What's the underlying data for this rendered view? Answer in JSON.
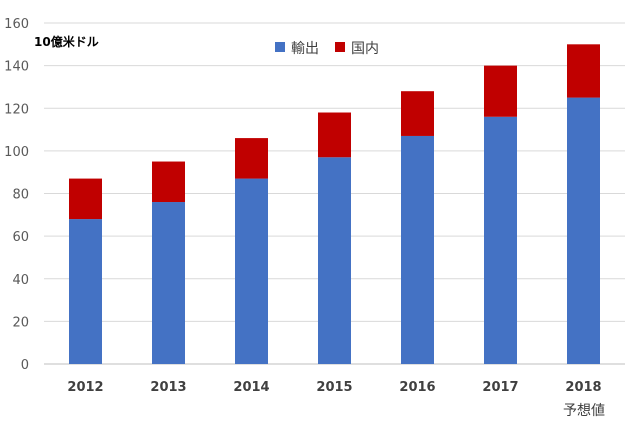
{
  "chart_data": {
    "type": "bar",
    "stacked": true,
    "categories": [
      "2012",
      "2013",
      "2014",
      "2015",
      "2016",
      "2017",
      "2018"
    ],
    "series": [
      {
        "name": "輸出",
        "color": "#4472C4",
        "values": [
          68,
          76,
          87,
          97,
          107,
          116,
          125
        ]
      },
      {
        "name": "国内",
        "color": "#C00000",
        "values": [
          19,
          19,
          19,
          21,
          21,
          24,
          25
        ]
      }
    ],
    "ylim": [
      0,
      160
    ],
    "yticks": [
      0,
      20,
      40,
      60,
      80,
      100,
      120,
      140,
      160
    ],
    "unit_label": "10億米ドル",
    "forecast_note": "予想値",
    "grid": true,
    "legend_position": "top"
  }
}
